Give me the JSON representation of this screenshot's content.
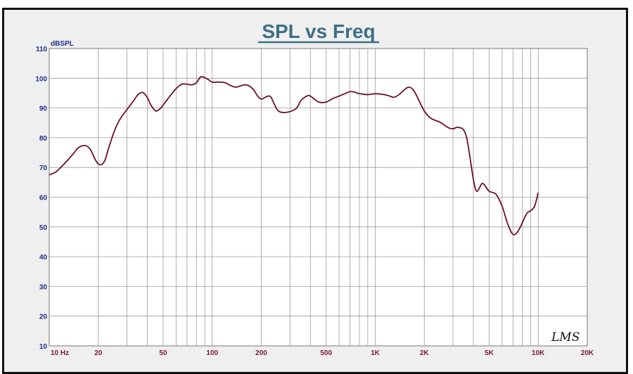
{
  "chart_data": {
    "type": "line",
    "title": "SPL vs Freq",
    "ylabel": "dBSPL",
    "xlabel": "",
    "x_scale": "log",
    "xlim": [
      10,
      20000
    ],
    "ylim": [
      10,
      110
    ],
    "grid": true,
    "y_ticks": [
      "10",
      "20",
      "30",
      "40",
      "50",
      "60",
      "70",
      "80",
      "90",
      "100",
      "110"
    ],
    "x_ticks": [
      {
        "value": 10,
        "label": "10 Hz"
      },
      {
        "value": 20,
        "label": "20"
      },
      {
        "value": 50,
        "label": "50"
      },
      {
        "value": 100,
        "label": "100"
      },
      {
        "value": 200,
        "label": "200"
      },
      {
        "value": 500,
        "label": "500"
      },
      {
        "value": 1000,
        "label": "1K"
      },
      {
        "value": 2000,
        "label": "2K"
      },
      {
        "value": 5000,
        "label": "5K"
      },
      {
        "value": 10000,
        "label": "10K"
      },
      {
        "value": 20000,
        "label": "20K"
      }
    ],
    "series": [
      {
        "color": "#6e1020",
        "x": [
          10,
          11,
          12,
          13,
          14,
          15,
          16,
          17,
          18,
          19,
          20,
          21,
          22,
          23,
          25,
          27,
          30,
          33,
          35,
          37,
          38,
          40,
          42,
          45,
          48,
          50,
          55,
          60,
          65,
          70,
          75,
          80,
          85,
          90,
          95,
          100,
          110,
          120,
          130,
          140,
          150,
          160,
          170,
          180,
          190,
          200,
          210,
          220,
          230,
          250,
          270,
          300,
          330,
          350,
          380,
          400,
          450,
          500,
          550,
          600,
          650,
          700,
          750,
          800,
          900,
          1000,
          1100,
          1200,
          1300,
          1400,
          1500,
          1600,
          1700,
          1800,
          2000,
          2200,
          2500,
          2800,
          3000,
          3200,
          3500,
          3700,
          4000,
          4200,
          4500,
          4700,
          5000,
          5500,
          6000,
          6500,
          7000,
          7500,
          8000,
          8500,
          9000,
          9500,
          10000
        ],
        "y": [
          67.5,
          68.5,
          70.5,
          72.5,
          74.5,
          76.5,
          77.3,
          77.2,
          75.8,
          73,
          71.2,
          71,
          72.5,
          76,
          82,
          86,
          89.5,
          92.5,
          94.5,
          95.2,
          95,
          93.5,
          91,
          89,
          89.8,
          91,
          94,
          96.5,
          98,
          98,
          97.8,
          98.5,
          100.5,
          100.2,
          99.5,
          98.7,
          98.7,
          98.5,
          97.5,
          97,
          97.5,
          97.8,
          97.3,
          96,
          94,
          93,
          93.5,
          94,
          93.5,
          89.5,
          88.5,
          88.8,
          90,
          92.5,
          94,
          94,
          92,
          92,
          93.2,
          94,
          94.8,
          95.5,
          95.3,
          94.8,
          94.5,
          94.8,
          94.6,
          94.2,
          93.6,
          94.5,
          96,
          97,
          96.3,
          94,
          89,
          86.5,
          85.2,
          83.4,
          83,
          83.5,
          82.5,
          78,
          66,
          62,
          64.5,
          64,
          62,
          61,
          57,
          51,
          47.5,
          48.5,
          51.5,
          54.5,
          55.5,
          57,
          61.5
        ]
      }
    ],
    "logo": "LMS"
  }
}
